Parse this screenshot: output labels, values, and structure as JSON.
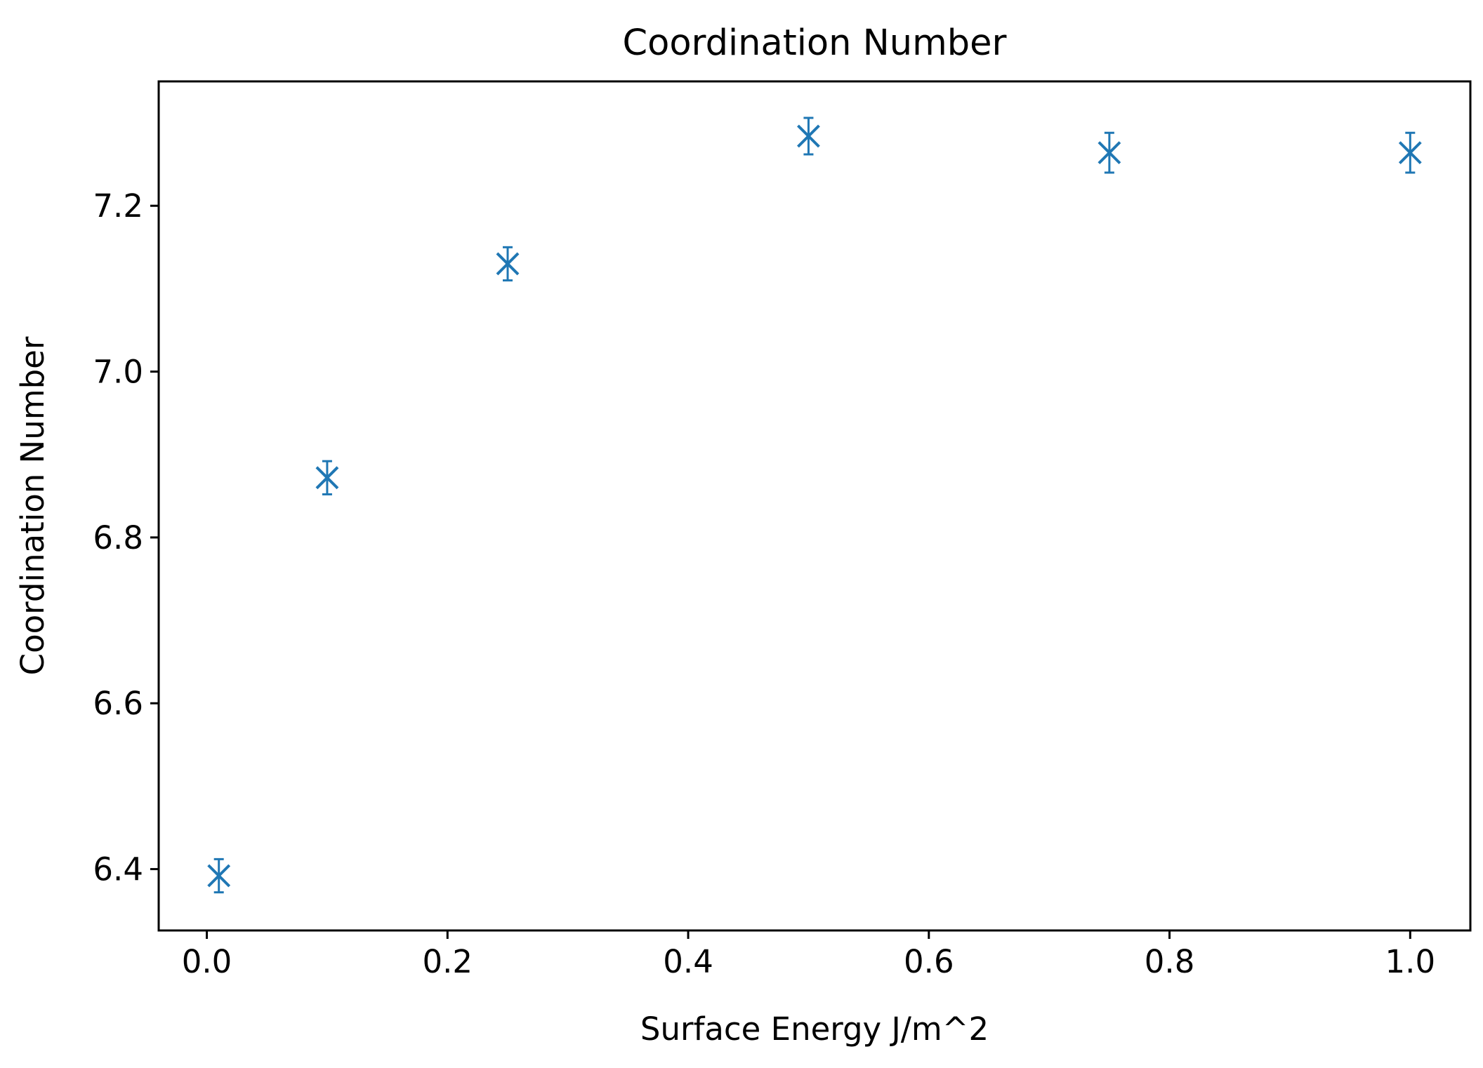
{
  "chart_data": {
    "type": "scatter",
    "title": "Coordination Number",
    "xlabel": "Surface Energy J/m^2",
    "ylabel": "Coordination Number",
    "xlim": [
      -0.04,
      1.05
    ],
    "ylim": [
      6.326,
      7.35
    ],
    "xticks": [
      0.0,
      0.2,
      0.4,
      0.6,
      0.8,
      1.0
    ],
    "xtick_labels": [
      "0.0",
      "0.2",
      "0.4",
      "0.6",
      "0.8",
      "1.0"
    ],
    "yticks": [
      6.4,
      6.6,
      6.8,
      7.0,
      7.2
    ],
    "ytick_labels": [
      "6.4",
      "6.6",
      "6.8",
      "7.0",
      "7.2"
    ],
    "grid": false,
    "marker": "x",
    "color": "#1f77b4",
    "points": [
      {
        "x": 0.01,
        "y": 6.392,
        "err": 0.02
      },
      {
        "x": 0.1,
        "y": 6.872,
        "err": 0.02
      },
      {
        "x": 0.25,
        "y": 7.13,
        "err": 0.02
      },
      {
        "x": 0.5,
        "y": 7.284,
        "err": 0.022
      },
      {
        "x": 0.75,
        "y": 7.264,
        "err": 0.024
      },
      {
        "x": 1.0,
        "y": 7.264,
        "err": 0.024
      }
    ]
  }
}
